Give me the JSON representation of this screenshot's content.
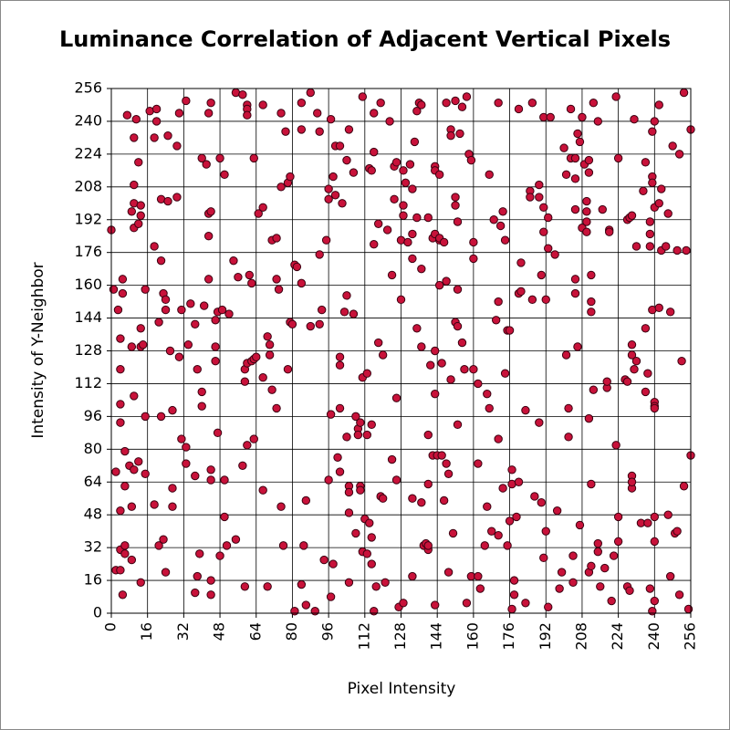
{
  "chart_data": {
    "type": "scatter",
    "title": "Luminance Correlation of Adjacent Vertical Pixels",
    "xlabel": "Pixel Intensity",
    "ylabel": "Intensity of Y-Neighbor",
    "xlim": [
      0,
      256
    ],
    "ylim": [
      0,
      256
    ],
    "xticks": [
      0,
      16,
      32,
      48,
      64,
      80,
      96,
      112,
      128,
      144,
      160,
      176,
      192,
      208,
      224,
      240,
      256
    ],
    "yticks": [
      0,
      16,
      32,
      48,
      64,
      80,
      96,
      112,
      128,
      144,
      160,
      176,
      192,
      208,
      224,
      240,
      256
    ],
    "grid": true,
    "color": "#c8123a",
    "edgecolor": "#3a0010",
    "x": [
      0,
      1,
      2,
      2,
      4,
      3,
      4,
      4,
      4,
      4,
      5,
      5,
      4,
      4,
      6,
      5,
      6,
      6,
      6,
      7,
      8,
      9,
      9,
      9,
      10,
      9,
      10,
      11,
      10,
      10,
      10,
      10,
      12,
      12,
      13,
      13,
      13,
      13,
      14,
      12,
      13,
      15,
      15,
      15,
      17,
      19,
      20,
      19,
      21,
      20,
      22,
      22,
      23,
      24,
      24,
      25,
      25,
      21,
      23,
      22,
      24,
      19,
      26,
      27,
      27,
      27,
      29,
      29,
      30,
      30,
      31,
      33,
      33,
      31,
      33,
      34,
      35,
      37,
      38,
      39,
      37,
      38,
      37,
      40,
      40,
      41,
      40,
      42,
      43,
      44,
      43,
      43,
      44,
      43,
      44,
      44,
      44,
      44,
      46,
      46,
      46,
      47,
      47,
      48,
      48,
      49,
      50,
      50,
      50,
      52,
      51,
      54,
      55,
      58,
      56,
      55,
      58,
      60,
      60,
      60,
      60,
      59,
      59,
      59,
      60,
      61,
      62,
      62,
      63,
      63,
      63,
      64,
      65,
      67,
      67,
      67,
      67,
      69,
      69,
      70,
      70,
      71,
      73,
      71,
      73,
      73,
      74,
      75,
      76,
      75,
      75,
      77,
      78,
      79,
      79,
      78,
      80,
      81,
      82,
      81,
      84,
      84,
      84,
      84,
      86,
      86,
      85,
      88,
      88,
      90,
      92,
      91,
      92,
      92,
      93,
      94,
      95,
      96,
      96,
      97,
      96,
      97,
      98,
      97,
      98,
      99,
      101,
      99,
      100,
      101,
      101,
      101,
      101,
      102,
      103,
      104,
      104,
      104,
      105,
      105,
      105,
      105,
      105,
      107,
      107,
      108,
      108,
      109,
      109,
      110,
      110,
      110,
      111,
      111,
      111,
      112,
      113,
      113,
      113,
      114,
      114,
      115,
      115,
      115,
      115,
      116,
      116,
      116,
      116,
      117,
      118,
      119,
      120,
      118,
      119,
      120,
      121,
      123,
      122,
      124,
      125,
      124,
      125,
      126,
      126,
      126,
      128,
      127,
      128,
      129,
      129,
      129,
      129,
      130,
      131,
      132,
      133,
      133,
      133,
      133,
      133,
      134,
      135,
      135,
      135,
      136,
      137,
      137,
      137,
      137,
      138,
      139,
      140,
      140,
      140,
      140,
      140,
      141,
      142,
      142,
      143,
      143,
      143,
      143,
      143,
      143,
      144,
      145,
      145,
      146,
      145,
      145,
      146,
      147,
      147,
      148,
      148,
      148,
      149,
      149,
      150,
      150,
      150,
      152,
      151,
      152,
      152,
      152,
      153,
      153,
      153,
      153,
      154,
      155,
      155,
      156,
      157,
      158,
      157,
      159,
      159,
      160,
      160,
      160,
      162,
      162,
      162,
      163,
      165,
      166,
      166,
      167,
      167,
      168,
      169,
      170,
      171,
      171,
      171,
      171,
      172,
      173,
      173,
      174,
      174,
      175,
      176,
      176,
      175,
      177,
      177,
      177,
      178,
      178,
      179,
      180,
      181,
      180,
      180,
      181,
      183,
      183,
      185,
      185,
      186,
      186,
      187,
      189,
      189,
      189,
      190,
      190,
      191,
      191,
      191,
      191,
      192,
      193,
      192,
      193,
      193,
      194,
      196,
      197,
      198,
      199,
      200,
      201,
      201,
      202,
      202,
      203,
      203,
      204,
      204,
      205,
      205,
      205,
      206,
      205,
      205,
      206,
      207,
      207,
      208,
      208,
      209,
      210,
      210,
      210,
      210,
      211,
      211,
      211,
      211,
      212,
      212,
      212,
      212,
      212,
      213,
      213,
      215,
      215,
      215,
      216,
      217,
      218,
      219,
      219,
      220,
      220,
      221,
      222,
      223,
      223,
      224,
      224,
      224,
      227,
      228,
      228,
      228,
      229,
      229,
      230,
      230,
      230,
      230,
      230,
      231,
      230,
      231,
      232,
      232,
      234,
      235,
      236,
      236,
      236,
      237,
      237,
      238,
      238,
      239,
      238,
      239,
      239,
      238,
      239,
      239,
      240,
      240,
      240,
      240,
      240,
      240,
      240,
      240,
      242,
      242,
      243,
      242,
      243,
      245,
      246,
      246,
      247,
      247,
      248,
      249,
      250,
      250,
      251,
      251,
      252,
      253,
      253,
      254,
      256,
      255,
      256
    ],
    "values": [
      187,
      158,
      69,
      21,
      21,
      148,
      119,
      93,
      102,
      134,
      156,
      163,
      50,
      31,
      29,
      9,
      79,
      62,
      33,
      243,
      72,
      52,
      26,
      196,
      188,
      130,
      70,
      241,
      232,
      209,
      200,
      106,
      220,
      190,
      194,
      199,
      139,
      130,
      131,
      74,
      15,
      158,
      68,
      96,
      245,
      232,
      246,
      179,
      142,
      240,
      172,
      202,
      156,
      153,
      148,
      201,
      233,
      33,
      36,
      96,
      20,
      53,
      128,
      99,
      52,
      61,
      228,
      203,
      244,
      125,
      85,
      81,
      73,
      148,
      250,
      131,
      151,
      141,
      119,
      29,
      10,
      18,
      67,
      108,
      101,
      150,
      222,
      219,
      195,
      196,
      184,
      244,
      249,
      163,
      70,
      65,
      16,
      9,
      130,
      123,
      143,
      147,
      88,
      28,
      222,
      148,
      47,
      214,
      65,
      146,
      33,
      172,
      254,
      253,
      164,
      36,
      72,
      82,
      248,
      246,
      243,
      13,
      119,
      113,
      122,
      165,
      161,
      123,
      85,
      222,
      124,
      125,
      195,
      198,
      248,
      60,
      115,
      135,
      13,
      131,
      126,
      182,
      183,
      109,
      100,
      163,
      158,
      52,
      33,
      208,
      244,
      235,
      210,
      213,
      142,
      119,
      141,
      170,
      169,
      1,
      14,
      249,
      161,
      236,
      55,
      4,
      33,
      254,
      140,
      1,
      141,
      244,
      175,
      235,
      148,
      26,
      182,
      202,
      207,
      97,
      65,
      241,
      213,
      8,
      24,
      228,
      228,
      204,
      76,
      69,
      100,
      125,
      121,
      200,
      147,
      86,
      221,
      155,
      15,
      62,
      59,
      49,
      236,
      215,
      146,
      39,
      96,
      90,
      87,
      62,
      93,
      60,
      30,
      252,
      115,
      46,
      87,
      117,
      29,
      217,
      44,
      92,
      216,
      37,
      24,
      1,
      180,
      244,
      225,
      13,
      190,
      249,
      126,
      132,
      57,
      56,
      15,
      240,
      187,
      165,
      218,
      75,
      202,
      105,
      220,
      65,
      182,
      3,
      153,
      5,
      194,
      199,
      216,
      210,
      181,
      219,
      207,
      185,
      173,
      18,
      56,
      230,
      139,
      245,
      193,
      249,
      168,
      130,
      54,
      248,
      33,
      34,
      193,
      87,
      31,
      63,
      33,
      121,
      183,
      77,
      218,
      216,
      4,
      107,
      128,
      185,
      77,
      182,
      160,
      122,
      214,
      183,
      77,
      181,
      55,
      249,
      162,
      73,
      68,
      20,
      236,
      233,
      114,
      203,
      39,
      250,
      199,
      142,
      140,
      158,
      191,
      92,
      234,
      247,
      132,
      119,
      252,
      224,
      5,
      221,
      18,
      181,
      173,
      119,
      18,
      112,
      73,
      12,
      33,
      107,
      52,
      214,
      100,
      40,
      192,
      143,
      152,
      85,
      38,
      249,
      189,
      61,
      196,
      182,
      117,
      138,
      138,
      45,
      33,
      70,
      63,
      2,
      9,
      16,
      47,
      156,
      157,
      246,
      64,
      171,
      99,
      5,
      206,
      203,
      153,
      249,
      57,
      203,
      93,
      209,
      165,
      54,
      27,
      198,
      242,
      186,
      153,
      178,
      40,
      193,
      3,
      242,
      175,
      50,
      12,
      20,
      227,
      214,
      126,
      86,
      100,
      222,
      246,
      28,
      15,
      222,
      156,
      163,
      130,
      212,
      197,
      234,
      43,
      230,
      188,
      242,
      219,
      186,
      191,
      201,
      196,
      215,
      221,
      95,
      20,
      63,
      23,
      165,
      152,
      147,
      109,
      249,
      34,
      240,
      30,
      13,
      197,
      22,
      110,
      113,
      187,
      186,
      6,
      28,
      252,
      82,
      35,
      47,
      222,
      114,
      192,
      113,
      13,
      11,
      193,
      131,
      61,
      67,
      64,
      194,
      241,
      126,
      119,
      179,
      123,
      44,
      206,
      139,
      220,
      108,
      44,
      117,
      191,
      185,
      213,
      179,
      148,
      210,
      12,
      1,
      235,
      240,
      198,
      103,
      101,
      100,
      47,
      35,
      6,
      149,
      248,
      177,
      200,
      207,
      179,
      48,
      195,
      147,
      18,
      228,
      39,
      177,
      40,
      9,
      224,
      123,
      254,
      62,
      177,
      236,
      2,
      77
    ]
  }
}
